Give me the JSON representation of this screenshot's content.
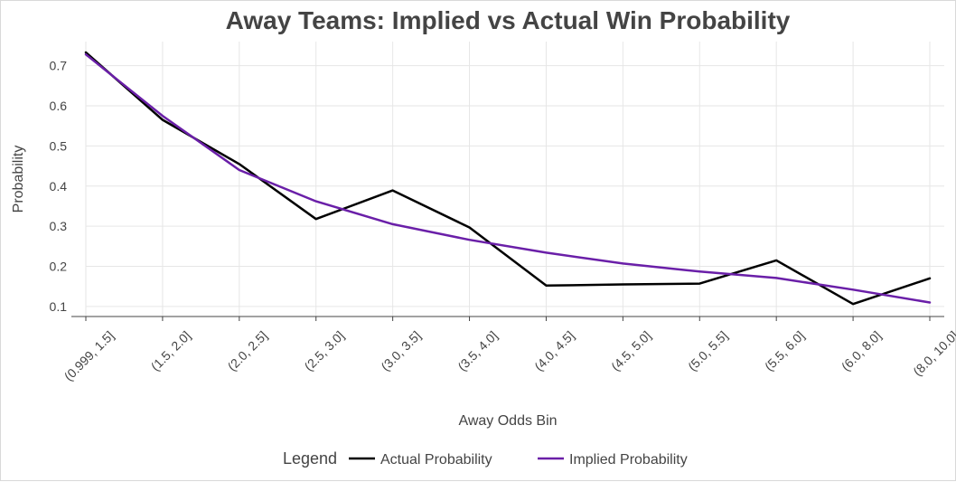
{
  "chart_data": {
    "type": "line",
    "title": "Away Teams: Implied vs Actual Win Probability",
    "xlabel": "Away Odds Bin",
    "ylabel": "Probability",
    "categories": [
      "(0.999, 1.5]",
      "(1.5, 2.0]",
      "(2.0, 2.5]",
      "(2.5, 3.0]",
      "(3.0, 3.5]",
      "(3.5, 4.0]",
      "(4.0, 4.5]",
      "(4.5, 5.0]",
      "(5.0, 5.5]",
      "(5.5, 6.0]",
      "(6.0, 8.0]",
      "(8.0, 10.0]"
    ],
    "yticks": [
      0.1,
      0.2,
      0.3,
      0.4,
      0.5,
      0.6,
      0.7
    ],
    "ylim": [
      0.075,
      0.76
    ],
    "grid": true,
    "legend": {
      "title": "Legend",
      "position": "bottom-center"
    },
    "series": [
      {
        "name": "Actual Probability",
        "color": "#000000",
        "values": [
          0.733,
          0.565,
          0.455,
          0.318,
          0.389,
          0.297,
          0.152,
          0.155,
          0.157,
          0.215,
          0.106,
          0.17
        ]
      },
      {
        "name": "Implied Probability",
        "color": "#6a1fa8",
        "values": [
          0.728,
          0.575,
          0.44,
          0.362,
          0.305,
          0.266,
          0.234,
          0.207,
          0.187,
          0.171,
          0.142,
          0.11
        ]
      }
    ]
  }
}
